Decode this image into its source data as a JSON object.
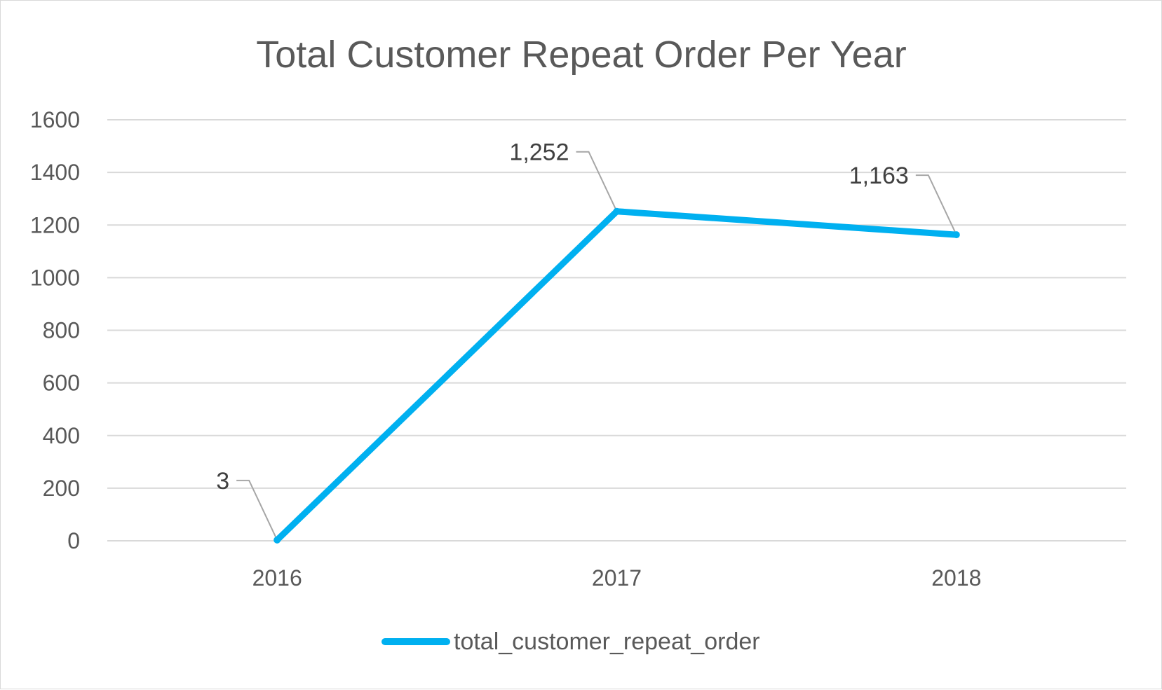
{
  "chart_data": {
    "type": "line",
    "title": "Total Customer Repeat Order Per Year",
    "xlabel": "",
    "ylabel": "",
    "categories": [
      "2016",
      "2017",
      "2018"
    ],
    "series": [
      {
        "name": "total_customer_repeat_order",
        "values": [
          3,
          1252,
          1163
        ],
        "data_labels": [
          "3",
          "1,252",
          "1,163"
        ],
        "color": "#00B0F0"
      }
    ],
    "ylim": [
      0,
      1600
    ],
    "yticks": [
      0,
      200,
      400,
      600,
      800,
      1000,
      1200,
      1400,
      1600
    ],
    "grid": true,
    "legend": "bottom"
  }
}
